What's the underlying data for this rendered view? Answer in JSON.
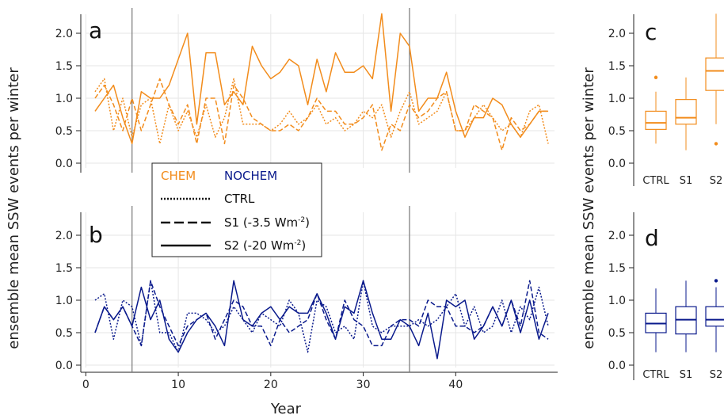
{
  "shared": {
    "ylabel": "ensemble mean SSW events per winter",
    "xlabel": "Year",
    "colors": {
      "CHEM": "#f28c1c",
      "NOCHEM": "#0a1a8c",
      "grid": "#e6e6e6",
      "vline": "#777777"
    },
    "vlines": [
      5,
      35
    ]
  },
  "legend": {
    "chem": "CHEM",
    "nochem": "NOCHEM",
    "ctrl": "CTRL",
    "s1": "S1 (-3.5 Wm",
    "s2": "S2 (-20 Wm",
    "sup": "-2",
    "close": ")"
  },
  "chart_data": [
    {
      "panel": "a",
      "type": "line",
      "color": "CHEM",
      "x": [
        1,
        2,
        3,
        4,
        5,
        6,
        7,
        8,
        9,
        10,
        11,
        12,
        13,
        14,
        15,
        16,
        17,
        18,
        19,
        20,
        21,
        22,
        23,
        24,
        25,
        26,
        27,
        28,
        29,
        30,
        31,
        32,
        33,
        34,
        35,
        36,
        37,
        38,
        39,
        40,
        41,
        42,
        43,
        44,
        45,
        46,
        47,
        48,
        49,
        50
      ],
      "xlim": [
        0,
        50
      ],
      "xticks": [
        "0",
        "10",
        "20",
        "30",
        "40"
      ],
      "ylim": [
        0,
        2.3
      ],
      "yticks": [
        "0.0",
        "0.5",
        "1.0",
        "1.5",
        "2.0"
      ],
      "series": [
        {
          "name": "CTRL",
          "style": "dotted",
          "values": [
            1.1,
            1.3,
            0.5,
            1.0,
            0.4,
            0.9,
            1.0,
            0.3,
            0.9,
            0.5,
            0.8,
            0.4,
            0.9,
            0.4,
            0.7,
            1.3,
            0.6,
            0.6,
            0.6,
            0.5,
            0.6,
            0.8,
            0.6,
            0.7,
            0.9,
            0.6,
            0.7,
            0.5,
            0.6,
            0.8,
            0.7,
            0.9,
            0.4,
            0.8,
            1.1,
            0.6,
            0.7,
            0.8,
            1.1,
            0.5,
            0.5,
            0.7,
            0.9,
            0.7,
            0.5,
            0.6,
            0.4,
            0.8,
            0.9,
            0.3
          ]
        },
        {
          "name": "S1",
          "style": "dashed",
          "values": [
            1.0,
            1.2,
            0.9,
            0.5,
            1.0,
            0.5,
            0.9,
            1.3,
            0.9,
            0.6,
            0.9,
            0.3,
            1.0,
            1.0,
            0.3,
            1.2,
            1.0,
            0.7,
            0.6,
            0.5,
            0.5,
            0.6,
            0.5,
            0.7,
            1.0,
            0.8,
            0.8,
            0.6,
            0.6,
            0.7,
            0.9,
            0.2,
            0.6,
            0.5,
            0.9,
            0.7,
            0.8,
            1.0,
            1.1,
            0.5,
            0.5,
            0.9,
            0.8,
            0.7,
            0.2,
            0.7,
            0.5,
            0.6,
            0.8,
            0.8
          ]
        },
        {
          "name": "S2",
          "style": "solid",
          "values": [
            0.8,
            1.0,
            1.2,
            0.7,
            0.3,
            1.1,
            1.0,
            1.0,
            1.2,
            1.6,
            2.0,
            0.6,
            1.7,
            1.7,
            0.9,
            1.1,
            0.9,
            1.8,
            1.5,
            1.3,
            1.4,
            1.6,
            1.5,
            0.9,
            1.6,
            1.1,
            1.7,
            1.4,
            1.4,
            1.5,
            1.3,
            2.3,
            0.8,
            2.0,
            1.8,
            0.8,
            1.0,
            1.0,
            1.4,
            0.8,
            0.4,
            0.7,
            0.7,
            1.0,
            0.9,
            0.6,
            0.4,
            0.6,
            0.8,
            0.8
          ]
        }
      ]
    },
    {
      "panel": "b",
      "type": "line",
      "color": "NOCHEM",
      "x": [
        1,
        2,
        3,
        4,
        5,
        6,
        7,
        8,
        9,
        10,
        11,
        12,
        13,
        14,
        15,
        16,
        17,
        18,
        19,
        20,
        21,
        22,
        23,
        24,
        25,
        26,
        27,
        28,
        29,
        30,
        31,
        32,
        33,
        34,
        35,
        36,
        37,
        38,
        39,
        40,
        41,
        42,
        43,
        44,
        45,
        46,
        47,
        48,
        49,
        50
      ],
      "xlim": [
        0,
        50
      ],
      "xticks": [
        "0",
        "10",
        "20",
        "30",
        "40"
      ],
      "ylim": [
        0,
        2.3
      ],
      "yticks": [
        "0.0",
        "0.5",
        "1.0",
        "1.5",
        "2.0"
      ],
      "series": [
        {
          "name": "CTRL",
          "style": "dotted",
          "values": [
            1.0,
            1.1,
            0.4,
            1.0,
            0.9,
            0.3,
            1.3,
            0.5,
            0.5,
            0.2,
            0.8,
            0.8,
            0.7,
            0.5,
            0.6,
            0.9,
            0.7,
            0.5,
            0.8,
            0.7,
            0.6,
            1.0,
            0.8,
            0.2,
            1.0,
            0.9,
            0.5,
            0.6,
            0.4,
            1.3,
            0.6,
            0.5,
            0.6,
            0.6,
            0.6,
            0.7,
            0.6,
            0.7,
            0.9,
            1.1,
            0.6,
            0.9,
            0.5,
            0.6,
            1.0,
            0.5,
            0.9,
            0.7,
            1.2,
            0.6
          ]
        },
        {
          "name": "S1",
          "style": "dashed",
          "values": [
            0.5,
            0.9,
            0.7,
            0.9,
            0.6,
            0.3,
            1.3,
            0.9,
            0.6,
            0.3,
            0.6,
            0.7,
            0.8,
            0.4,
            0.7,
            1.0,
            0.9,
            0.6,
            0.6,
            0.3,
            0.7,
            0.5,
            0.6,
            0.7,
            1.1,
            0.7,
            0.4,
            1.0,
            0.7,
            0.6,
            0.3,
            0.3,
            0.6,
            0.7,
            0.7,
            0.6,
            1.0,
            0.9,
            0.9,
            0.6,
            0.6,
            0.5,
            0.6,
            0.9,
            0.6,
            1.0,
            0.6,
            1.3,
            0.5,
            0.4
          ]
        },
        {
          "name": "S2",
          "style": "solid",
          "values": [
            0.5,
            0.9,
            0.7,
            0.9,
            0.6,
            1.2,
            0.7,
            1.0,
            0.4,
            0.2,
            0.5,
            0.7,
            0.8,
            0.6,
            0.3,
            1.3,
            0.7,
            0.6,
            0.8,
            0.9,
            0.7,
            0.9,
            0.8,
            0.8,
            1.1,
            0.8,
            0.4,
            0.9,
            0.8,
            1.3,
            0.8,
            0.4,
            0.4,
            0.7,
            0.6,
            0.3,
            0.8,
            0.1,
            1.0,
            0.9,
            1.0,
            0.4,
            0.6,
            0.9,
            0.6,
            1.0,
            0.5,
            1.0,
            0.4,
            0.8
          ]
        }
      ]
    },
    {
      "panel": "c",
      "type": "box",
      "color": "CHEM",
      "categories": [
        "CTRL",
        "S1",
        "S2"
      ],
      "ylim": [
        0,
        2.3
      ],
      "yticks": [
        "0.0",
        "0.5",
        "1.0",
        "1.5",
        "2.0"
      ],
      "boxes": [
        {
          "min": 0.3,
          "q1": 0.52,
          "median": 0.62,
          "q3": 0.8,
          "max": 1.1,
          "outliers": [
            1.32
          ]
        },
        {
          "min": 0.2,
          "q1": 0.6,
          "median": 0.7,
          "q3": 0.98,
          "max": 1.32,
          "outliers": []
        },
        {
          "min": 0.6,
          "q1": 1.12,
          "median": 1.42,
          "q3": 1.62,
          "max": 2.3,
          "outliers": [
            0.3
          ]
        }
      ]
    },
    {
      "panel": "d",
      "type": "box",
      "color": "NOCHEM",
      "categories": [
        "CTRL",
        "S1",
        "S2"
      ],
      "ylim": [
        0,
        2.3
      ],
      "yticks": [
        "0.0",
        "0.5",
        "1.0",
        "1.5",
        "2.0"
      ],
      "boxes": [
        {
          "min": 0.2,
          "q1": 0.5,
          "median": 0.64,
          "q3": 0.8,
          "max": 1.18,
          "outliers": []
        },
        {
          "min": 0.2,
          "q1": 0.48,
          "median": 0.7,
          "q3": 0.9,
          "max": 1.3,
          "outliers": []
        },
        {
          "min": 0.2,
          "q1": 0.6,
          "median": 0.7,
          "q3": 0.9,
          "max": 1.2,
          "outliers": [
            1.3
          ]
        }
      ]
    }
  ]
}
